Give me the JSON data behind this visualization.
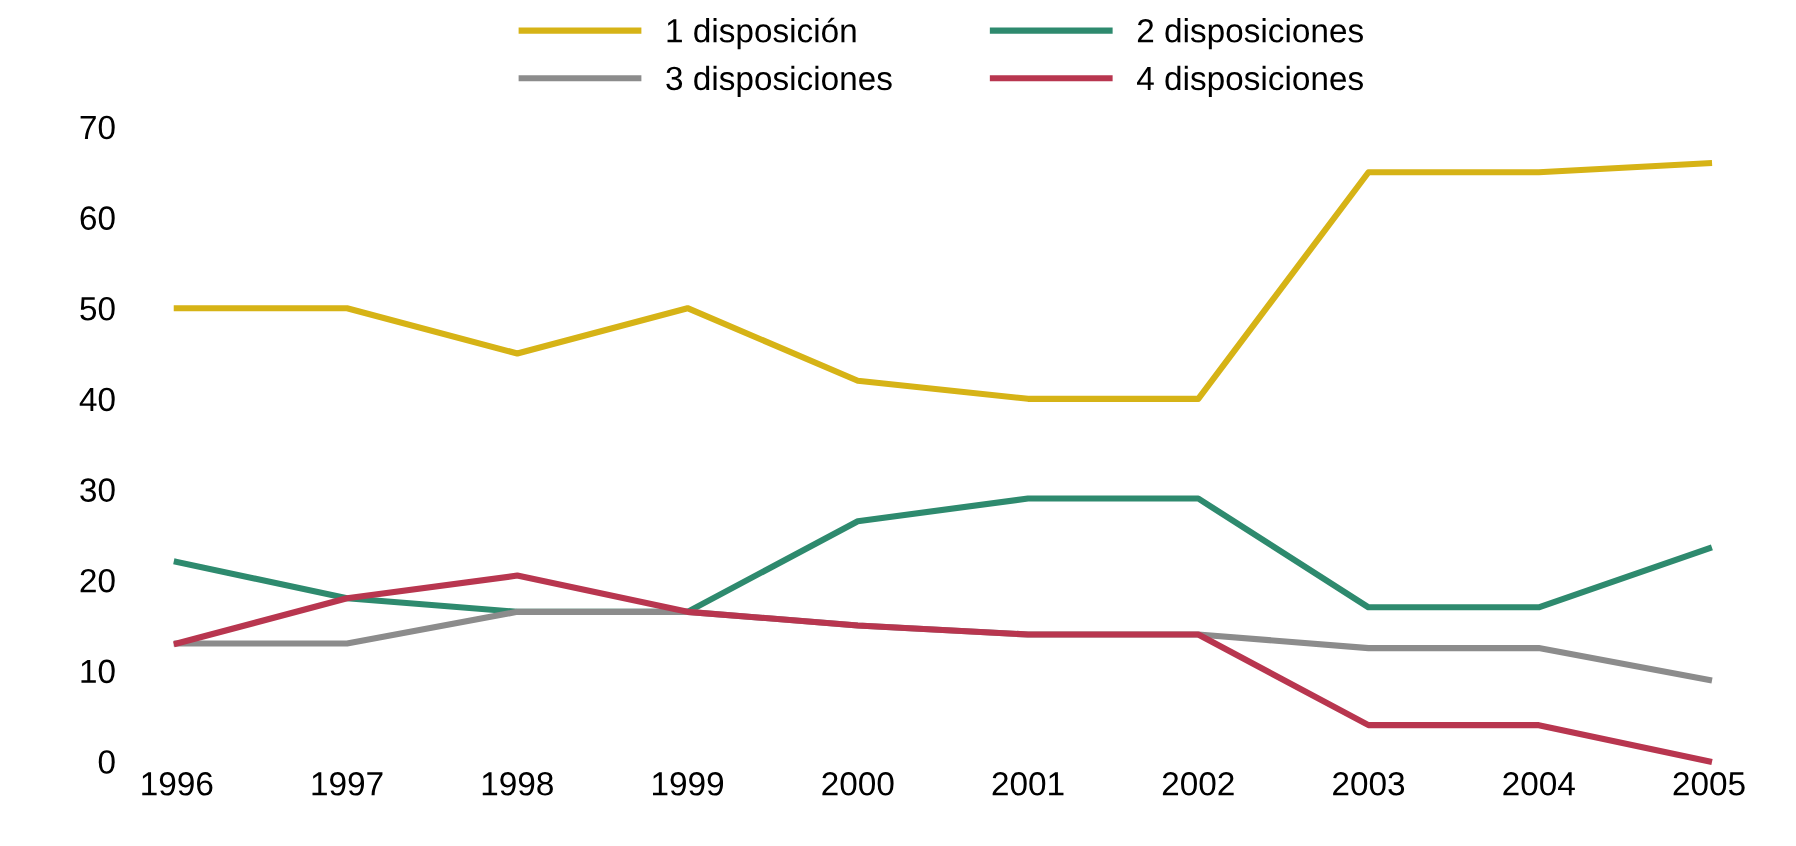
{
  "chart_data": {
    "type": "line",
    "categories": [
      "1996",
      "1997",
      "1998",
      "1999",
      "2000",
      "2001",
      "2002",
      "2003",
      "2004",
      "2005"
    ],
    "series": [
      {
        "name": "1 disposición",
        "color": "#d6b316",
        "values": [
          50,
          50,
          45,
          50,
          42,
          40,
          40,
          65,
          65,
          66
        ]
      },
      {
        "name": "2 disposiciones",
        "color": "#2e8a6e",
        "values": [
          22,
          18,
          16.5,
          16.5,
          26.5,
          29,
          29,
          17,
          17,
          23.5
        ]
      },
      {
        "name": "3 disposiciones",
        "color": "#8c8c8c",
        "values": [
          13,
          13,
          16.5,
          16.5,
          15,
          14,
          14,
          12.5,
          12.5,
          9
        ]
      },
      {
        "name": "4 disposiciones",
        "color": "#b8364f",
        "values": [
          13,
          18,
          20.5,
          16.5,
          15,
          14,
          14,
          4,
          4,
          0
        ]
      }
    ],
    "ylim": [
      0,
      70
    ],
    "yticks": [
      0,
      10,
      20,
      30,
      40,
      50,
      60,
      70
    ],
    "grid": false,
    "legend": "top",
    "marker": "none",
    "line_style": "solid"
  }
}
